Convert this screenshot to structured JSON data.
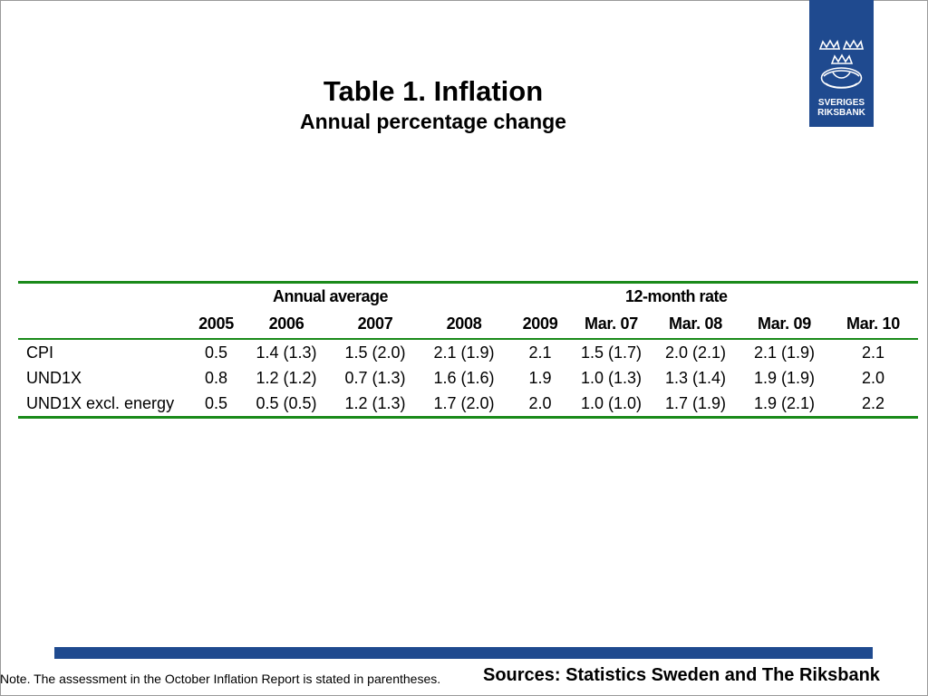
{
  "title": "Table 1. Inflation",
  "subtitle": "Annual percentage change",
  "logo": {
    "line1": "SVERIGES",
    "line2": "RIKSBANK"
  },
  "table": {
    "group_headers": [
      "Annual average",
      "12-month rate"
    ],
    "columns": [
      "2005",
      "2006",
      "2007",
      "2008",
      "2009",
      "Mar. 07",
      "Mar. 08",
      "Mar. 09",
      "Mar. 10"
    ],
    "rows": [
      {
        "label": "CPI",
        "values": [
          "0.5",
          "1.4 (1.3)",
          "1.5 (2.0)",
          "2.1 (1.9)",
          "2.1",
          "1.5 (1.7)",
          "2.0 (2.1)",
          "2.1 (1.9)",
          "2.1"
        ]
      },
      {
        "label": "UND1X",
        "values": [
          "0.8",
          "1.2 (1.2)",
          "0.7 (1.3)",
          "1.6 (1.6)",
          "1.9",
          "1.0 (1.3)",
          "1.3 (1.4)",
          "1.9 (1.9)",
          "2.0"
        ]
      },
      {
        "label": "UND1X excl. energy",
        "values": [
          "0.5",
          "0.5 (0.5)",
          "1.2 (1.3)",
          "1.7 (2.0)",
          "2.0",
          "1.0 (1.0)",
          "1.7 (1.9)",
          "1.9 (2.1)",
          "2.2"
        ]
      }
    ]
  },
  "note": "Note. The assessment in the October Inflation Report is stated in parentheses.",
  "sources": "Sources: Statistics Sweden and The Riksbank",
  "colors": {
    "brand_blue": "#1f4a8f",
    "rule_green": "#1a8a1a"
  }
}
